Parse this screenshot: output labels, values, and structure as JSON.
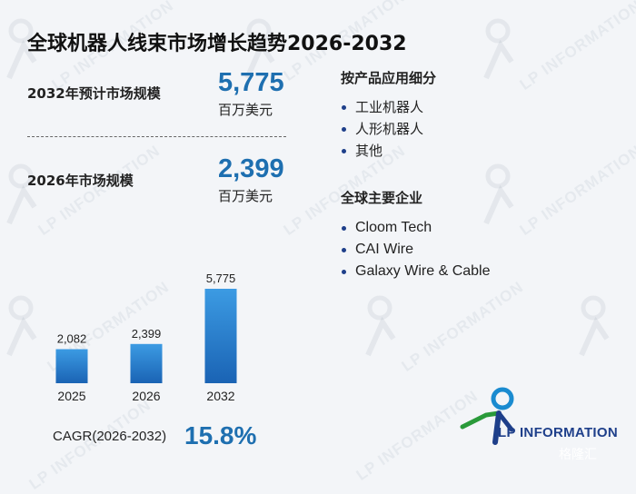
{
  "title": "全球机器人线束市场增长趋势2026-2032",
  "stats": [
    {
      "label": "2032年预计市场规模",
      "value": "5,775",
      "unit": "百万美元"
    },
    {
      "label": "2026年市场规模",
      "value": "2,399",
      "unit": "百万美元"
    }
  ],
  "segments": {
    "title": "按产品应用细分",
    "items": [
      "工业机器人",
      "人形机器人",
      "其他"
    ]
  },
  "companies": {
    "title": "全球主要企业",
    "items": [
      "Cloom Tech",
      "CAI Wire",
      "Galaxy Wire & Cable"
    ]
  },
  "chart_data": {
    "type": "bar",
    "categories": [
      "2025",
      "2026",
      "2032"
    ],
    "values": [
      2082,
      2399,
      5775
    ],
    "value_labels": [
      "2,082",
      "2,399",
      "5,775"
    ],
    "ylim": [
      0,
      5775
    ],
    "colors": {
      "bar_top": "#3c9be3",
      "bar_bottom": "#1a63b4"
    }
  },
  "cagr": {
    "label": "CAGR(2026-2032)",
    "value": "15.8%"
  },
  "logo": {
    "text": "LP INFORMATION",
    "icon": "runner-logo-icon"
  },
  "watermark": {
    "text": "LP INFORMATION",
    "credit": "格隆汇"
  },
  "colors": {
    "accent": "#1e6fb0",
    "navy": "#1e3f8a",
    "green": "#2a9a3a"
  }
}
